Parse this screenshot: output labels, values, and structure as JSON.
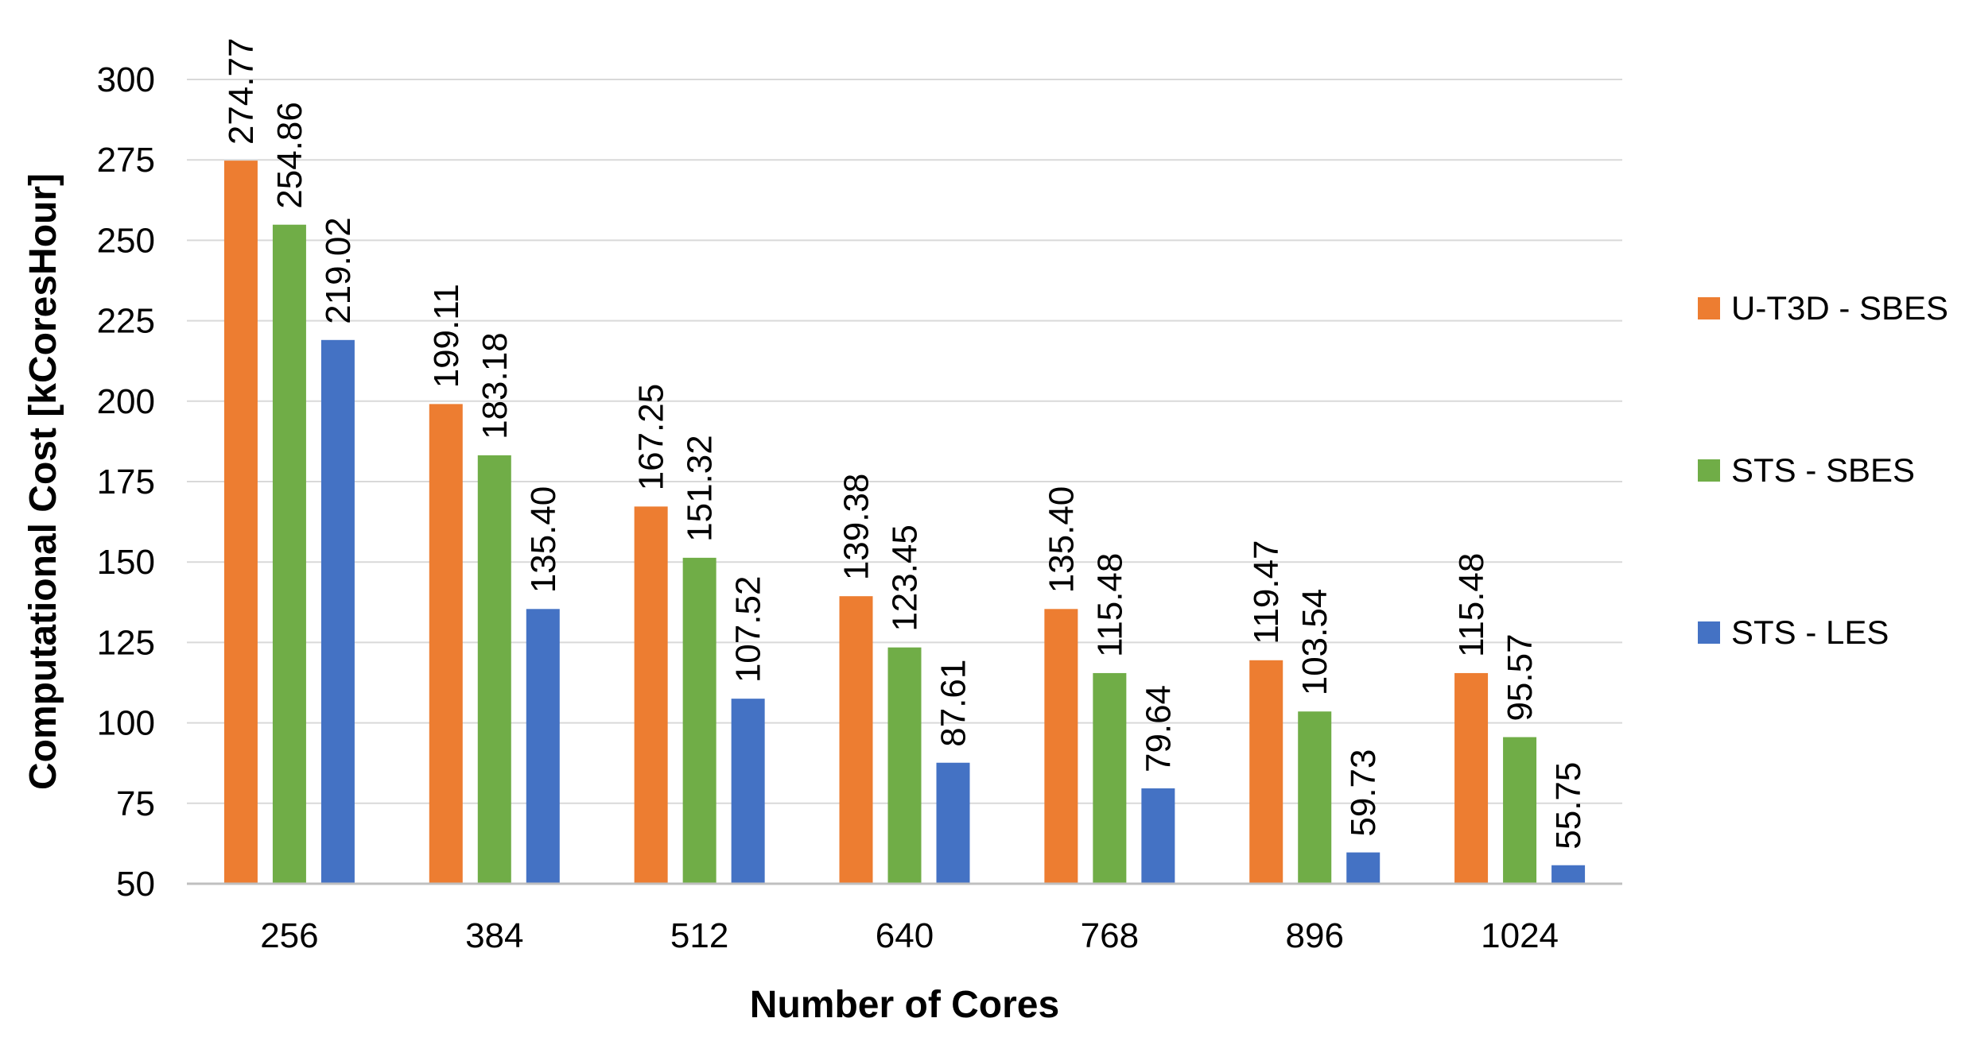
{
  "chart_data": {
    "type": "bar",
    "title": "",
    "xlabel": "Number of Cores",
    "ylabel": "Computational Cost [kCoresHour]",
    "categories": [
      "256",
      "384",
      "512",
      "640",
      "768",
      "896",
      "1024"
    ],
    "ylim": [
      50,
      300
    ],
    "yticks": [
      50,
      75,
      100,
      125,
      150,
      175,
      200,
      225,
      250,
      275,
      300
    ],
    "grid": true,
    "legend_position": "right",
    "series": [
      {
        "name": "U-T3D - SBES",
        "color": "#ED7D31",
        "values": [
          274.77,
          199.11,
          167.25,
          139.38,
          135.4,
          119.47,
          115.48
        ],
        "labels": [
          "274.77",
          "199.11",
          "167.25",
          "139.38",
          "135.40",
          "119.47",
          "115.48"
        ]
      },
      {
        "name": "STS - SBES",
        "color": "#70AD47",
        "values": [
          254.86,
          183.18,
          151.32,
          123.45,
          115.48,
          103.54,
          95.57
        ],
        "labels": [
          "254.86",
          "183.18",
          "151.32",
          "123.45",
          "115.48",
          "103.54",
          "95.57"
        ]
      },
      {
        "name": "STS - LES",
        "color": "#4472C4",
        "values": [
          219.02,
          135.4,
          107.52,
          87.61,
          79.64,
          59.73,
          55.75
        ],
        "labels": [
          "219.02",
          "135.40",
          "107.52",
          "87.61",
          "79.64",
          "59.73",
          "55.75"
        ]
      }
    ]
  }
}
